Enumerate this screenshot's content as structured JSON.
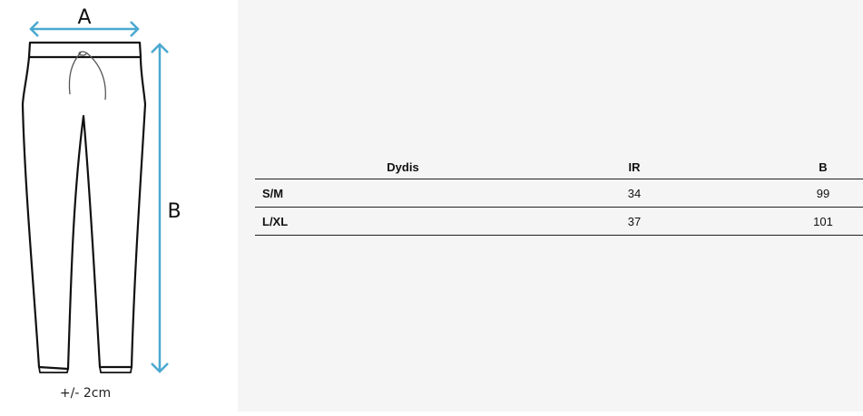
{
  "figure": {
    "label_a": "A",
    "label_b": "B",
    "tolerance": "+/- 2cm",
    "arrow_color": "#4aa8d0"
  },
  "table": {
    "headers": [
      "Dydis",
      "IR",
      "B"
    ],
    "rows": [
      [
        "S/M",
        "34",
        "99"
      ],
      [
        "L/XL",
        "37",
        "101"
      ]
    ]
  }
}
